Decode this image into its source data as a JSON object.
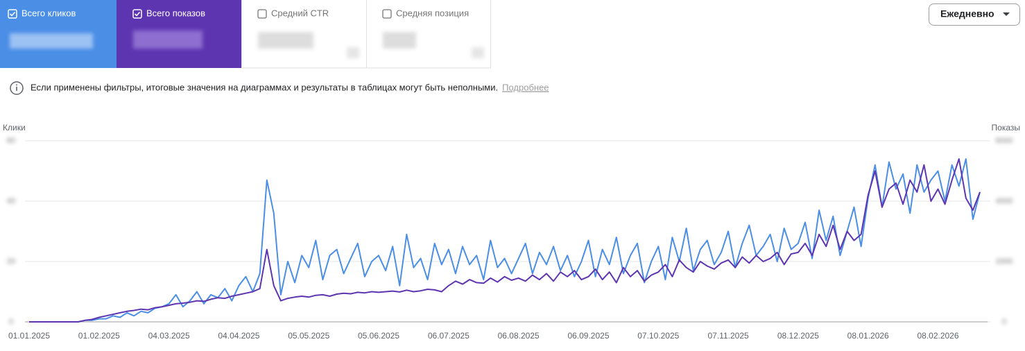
{
  "header": {
    "metrics": [
      "Средний CTR",
      "Средняя позиция"
    ],
    "period": "Ежедневно"
  },
  "notice": {
    "text": "Если применены фильтры, итоговые значения на диаграммах и результаты в таблицах могут быть неполными.",
    "link": "Подробнее"
  },
  "chart_data": {
    "type": "line",
    "y_label": "Клики",
    "y2_label": "Показы",
    "categories": [
      "01.01.2025",
      null,
      null,
      null,
      null,
      null,
      null,
      null,
      null,
      null,
      "01.02.2025",
      null,
      null,
      null,
      null,
      null,
      null,
      null,
      null,
      null,
      "04.03.2025",
      null,
      null,
      null,
      null,
      null,
      null,
      null,
      null,
      null,
      "04.04.2025",
      null,
      null,
      null,
      null,
      null,
      null,
      null,
      null,
      null,
      "05.05.2025",
      null,
      null,
      null,
      null,
      null,
      null,
      null,
      null,
      null,
      "05.06.2025",
      null,
      null,
      null,
      null,
      null,
      null,
      null,
      null,
      null,
      "06.07.2025",
      null,
      null,
      null,
      null,
      null,
      null,
      null,
      null,
      null,
      "06.08.2025",
      null,
      null,
      null,
      null,
      null,
      null,
      null,
      null,
      null,
      "06.09.2025",
      null,
      null,
      null,
      null,
      null,
      null,
      null,
      null,
      null,
      "07.10.2025",
      null,
      null,
      null,
      null,
      null,
      null,
      null,
      null,
      null,
      "07.11.2025",
      null,
      null,
      null,
      null,
      null,
      null,
      null,
      null,
      null,
      "08.12.2025",
      null,
      null,
      null,
      null,
      null,
      null,
      null,
      null,
      null,
      "08.01.2026",
      null,
      null,
      null,
      null,
      null,
      null,
      null,
      null,
      null,
      "08.02.2026",
      null,
      null,
      null,
      null,
      null,
      null
    ],
    "series": [
      {
        "name": "Всего кликов",
        "color": "#4a8ee6",
        "values": [
          0,
          0,
          0,
          0,
          0,
          0,
          0,
          0,
          0.5,
          0.5,
          1,
          1,
          2,
          1.5,
          3,
          2,
          3.5,
          3,
          4.5,
          5,
          6,
          9,
          5,
          7,
          10,
          6,
          9,
          8,
          11,
          7,
          12,
          15,
          10,
          16,
          47,
          36,
          9,
          20,
          13,
          22,
          18,
          27,
          14,
          22,
          24,
          16,
          21,
          26,
          15,
          20,
          22,
          17,
          25,
          12,
          29,
          18,
          21,
          14,
          26,
          19,
          24,
          16,
          25,
          19,
          22,
          14,
          27,
          18,
          21,
          16,
          21,
          26,
          16,
          23,
          19,
          25,
          17,
          22,
          15,
          20,
          27,
          15,
          24,
          19,
          28,
          16,
          22,
          26,
          13,
          20,
          25,
          14,
          28,
          20,
          31,
          17,
          24,
          27,
          19,
          23,
          30,
          18,
          26,
          32,
          22,
          25,
          29,
          20,
          31,
          24,
          26,
          33,
          21,
          37,
          27,
          35,
          22,
          30,
          38,
          25,
          41,
          52,
          38,
          53,
          44,
          49,
          36,
          52,
          43,
          47,
          50,
          40,
          52,
          45,
          54,
          34,
          43
        ]
      },
      {
        "name": "Всего показов",
        "color": "#5e35b1",
        "axis": "y2",
        "values": [
          0,
          0,
          0,
          0,
          0,
          0,
          0,
          0,
          50,
          80,
          150,
          200,
          250,
          300,
          350,
          380,
          420,
          400,
          470,
          500,
          550,
          600,
          620,
          650,
          700,
          680,
          750,
          800,
          780,
          850,
          900,
          950,
          1000,
          1100,
          2400,
          1200,
          700,
          780,
          820,
          850,
          820,
          880,
          900,
          850,
          920,
          950,
          930,
          980,
          960,
          1000,
          980,
          1000,
          1020,
          990,
          1050,
          1000,
          1030,
          1080,
          1060,
          1000,
          1200,
          1350,
          1250,
          1400,
          1300,
          1280,
          1450,
          1320,
          1500,
          1380,
          1450,
          1350,
          1550,
          1400,
          1600,
          1350,
          1650,
          1500,
          1700,
          1400,
          1500,
          1750,
          1400,
          1650,
          1300,
          1800,
          1500,
          1700,
          1350,
          1550,
          1650,
          1900,
          1500,
          2050,
          1800,
          1650,
          2000,
          1850,
          1750,
          1950,
          2050,
          1800,
          2150,
          1950,
          2200,
          2000,
          2100,
          2300,
          1900,
          2250,
          2300,
          2600,
          2200,
          2900,
          2500,
          3200,
          2400,
          3000,
          2700,
          2900,
          4200,
          5000,
          3800,
          4400,
          4600,
          3900,
          4700,
          4300,
          5200,
          4000,
          4400,
          3900,
          4700,
          5400,
          4100,
          3700,
          4300
        ]
      }
    ],
    "ylim": [
      0,
      60
    ],
    "yticks": [
      0,
      20,
      40,
      60
    ],
    "y2lim": [
      0,
      6000
    ],
    "y2ticks": [
      0,
      2000,
      4000,
      6000
    ],
    "grid": true
  }
}
